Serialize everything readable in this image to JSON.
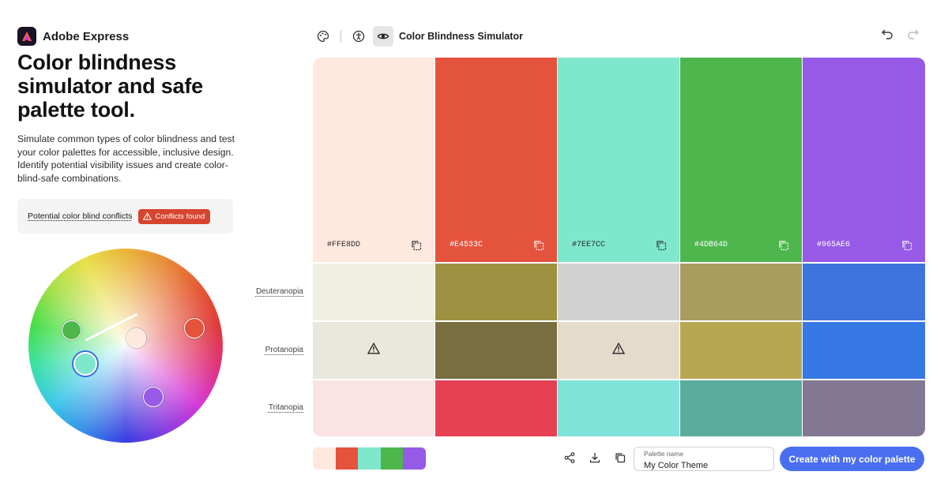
{
  "brand": {
    "name": "Adobe Express"
  },
  "hero": {
    "title": "Color blindness simulator and safe palette tool.",
    "description": "Simulate common types of color blindness and test your color palettes for accessible, inclusive design. Identify potential visibility issues and create color-blind-safe combinations."
  },
  "conflicts": {
    "label": "Potential color blind conflicts",
    "badge": "Conflicts found"
  },
  "toolbar": {
    "title": "Color Blindness Simulator"
  },
  "palette": {
    "colors": [
      {
        "hex": "#FFE8DD"
      },
      {
        "hex": "#E4533C"
      },
      {
        "hex": "#7EE7CC"
      },
      {
        "hex": "#4DB64D"
      },
      {
        "hex": "#965AE6"
      }
    ]
  },
  "simulations": [
    {
      "label": "Deuteranopia",
      "colors": [
        "#F1EEE2",
        "#9E9141",
        "#D1D1D1",
        "#A89C5E",
        "#3E75DC"
      ],
      "warnings": [
        false,
        false,
        false,
        false,
        false
      ]
    },
    {
      "label": "Protanopia",
      "colors": [
        "#EAE8DC",
        "#7A6E41",
        "#E4DBCC",
        "#B8A752",
        "#3678E4"
      ],
      "warnings": [
        true,
        false,
        true,
        false,
        false
      ]
    },
    {
      "label": "Tritanopia",
      "colors": [
        "#FBE3E4",
        "#E54152",
        "#80E3D9",
        "#5AAD9C",
        "#827893"
      ],
      "warnings": [
        false,
        false,
        false,
        false,
        false
      ]
    }
  ],
  "footer": {
    "palette_name_label": "Palette name",
    "palette_name_value": "My Color Theme",
    "cta": "Create with my color palette"
  },
  "icons": {
    "palette": "palette-icon",
    "accessibility": "accessibility-icon",
    "eye": "eye-icon",
    "undo": "undo-icon",
    "redo": "redo-icon",
    "copy": "copy-icon",
    "share": "share-icon",
    "download": "download-icon",
    "duplicate": "duplicate-icon",
    "warning": "warning-icon"
  }
}
